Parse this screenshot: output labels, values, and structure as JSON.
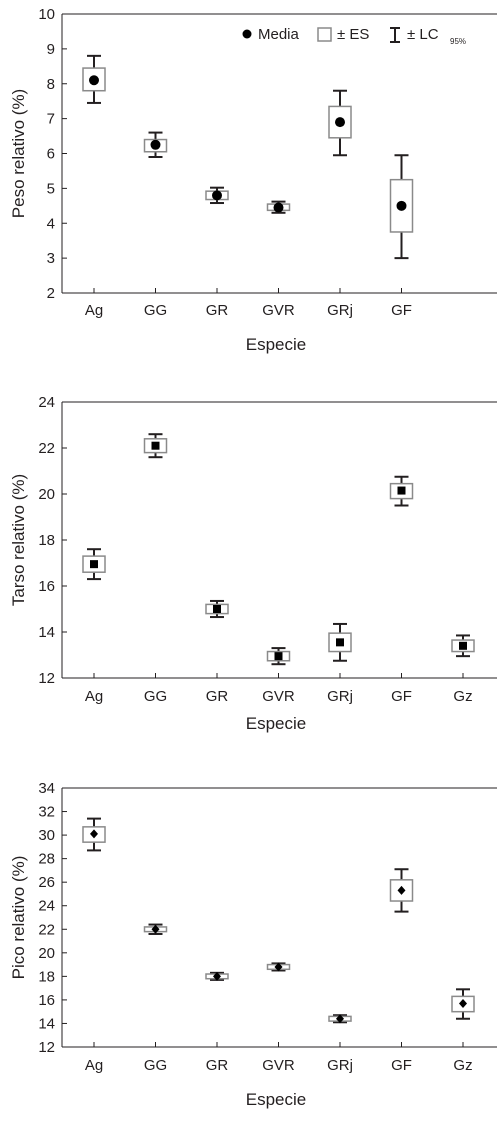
{
  "legend": {
    "mean_label": "Media",
    "se_label": "± ES",
    "ci_label": "± LC",
    "ci_sub": "95%"
  },
  "chart_data": [
    {
      "type": "box",
      "xlabel": "Especie",
      "ylabel": "Peso relativo (%)",
      "ylim": [
        2,
        10
      ],
      "yticks": [
        2,
        3,
        4,
        5,
        6,
        7,
        8,
        9,
        10
      ],
      "marker": "circle",
      "categories": [
        "Ag",
        "GG",
        "GR",
        "GVR",
        "GRj",
        "GF"
      ],
      "mean": [
        8.1,
        6.25,
        4.8,
        4.45,
        6.9,
        4.5
      ],
      "se": [
        [
          7.8,
          8.45
        ],
        [
          6.05,
          6.4
        ],
        [
          4.68,
          4.92
        ],
        [
          4.37,
          4.55
        ],
        [
          6.45,
          7.35
        ],
        [
          3.75,
          5.25
        ]
      ],
      "ci95": [
        [
          7.45,
          8.8
        ],
        [
          5.9,
          6.6
        ],
        [
          4.58,
          5.02
        ],
        [
          4.3,
          4.62
        ],
        [
          5.95,
          7.8
        ],
        [
          3.0,
          5.95
        ]
      ],
      "legend_position": "top-right"
    },
    {
      "type": "box",
      "xlabel": "Especie",
      "ylabel": "Tarso relativo (%)",
      "ylim": [
        12,
        24
      ],
      "yticks": [
        12,
        14,
        16,
        18,
        20,
        22,
        24
      ],
      "marker": "square",
      "categories": [
        "Ag",
        "GG",
        "GR",
        "GVR",
        "GRj",
        "GF",
        "Gz"
      ],
      "mean": [
        16.95,
        22.1,
        15.0,
        12.95,
        13.55,
        20.15,
        13.4
      ],
      "se": [
        [
          16.6,
          17.3
        ],
        [
          21.8,
          22.4
        ],
        [
          14.8,
          15.2
        ],
        [
          12.75,
          13.15
        ],
        [
          13.15,
          13.95
        ],
        [
          19.8,
          20.45
        ],
        [
          13.15,
          13.65
        ]
      ],
      "ci95": [
        [
          16.3,
          17.6
        ],
        [
          21.6,
          22.6
        ],
        [
          14.65,
          15.35
        ],
        [
          12.6,
          13.3
        ],
        [
          12.75,
          14.35
        ],
        [
          19.5,
          20.75
        ],
        [
          12.95,
          13.85
        ]
      ]
    },
    {
      "type": "box",
      "xlabel": "Especie",
      "ylabel": "Pico relativo (%)",
      "ylim": [
        12,
        34
      ],
      "yticks": [
        12,
        14,
        16,
        18,
        20,
        22,
        24,
        26,
        28,
        30,
        32,
        34
      ],
      "marker": "diamond",
      "categories": [
        "Ag",
        "GG",
        "GR",
        "GVR",
        "GRj",
        "GF",
        "Gz"
      ],
      "mean": [
        30.1,
        22.0,
        18.0,
        18.8,
        14.4,
        25.3,
        15.7
      ],
      "se": [
        [
          29.4,
          30.7
        ],
        [
          21.8,
          22.2
        ],
        [
          17.8,
          18.2
        ],
        [
          18.6,
          19.0
        ],
        [
          14.2,
          14.6
        ],
        [
          24.4,
          26.2
        ],
        [
          15.0,
          16.3
        ]
      ],
      "ci95": [
        [
          28.7,
          31.4
        ],
        [
          21.6,
          22.4
        ],
        [
          17.7,
          18.3
        ],
        [
          18.5,
          19.1
        ],
        [
          14.1,
          14.7
        ],
        [
          23.5,
          27.1
        ],
        [
          14.4,
          16.9
        ]
      ]
    }
  ]
}
